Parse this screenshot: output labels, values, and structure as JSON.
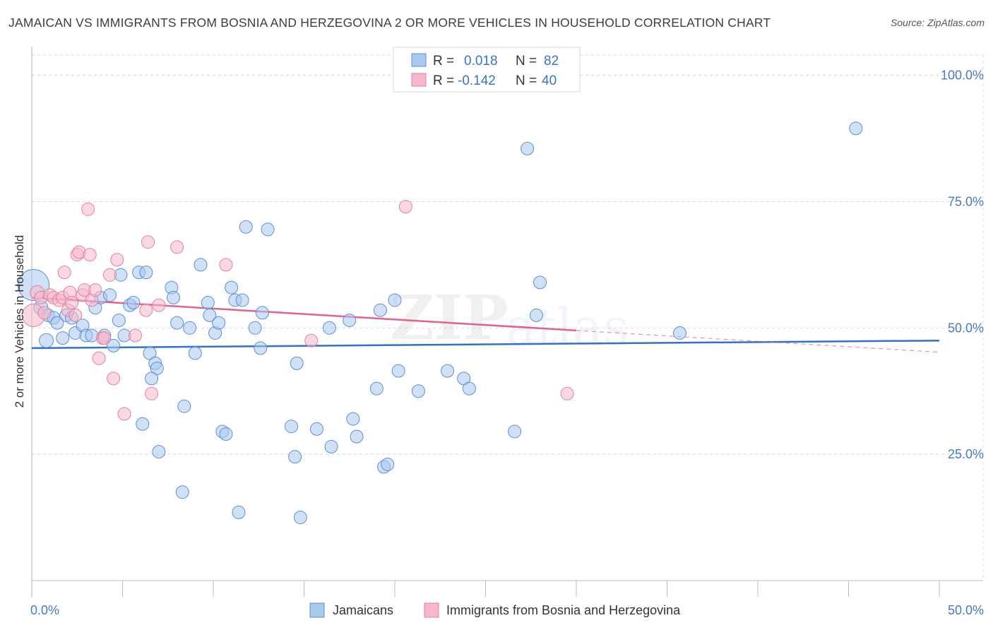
{
  "title": "JAMAICAN VS IMMIGRANTS FROM BOSNIA AND HERZEGOVINA 2 OR MORE VEHICLES IN HOUSEHOLD CORRELATION CHART",
  "source": "Source: ZipAtlas.com",
  "watermark": {
    "zip": "ZIP",
    "atlas": "atlas"
  },
  "colors": {
    "blue_fill": "#a9c8ee",
    "blue_stroke": "#5b8fd6",
    "blue_line": "#2f72c8",
    "pink_fill": "#f5b8cb",
    "pink_stroke": "#e37fa0",
    "pink_line": "#e0628e",
    "grid": "#d8d8d8",
    "tick_text": "#4a78c8"
  },
  "legend": {
    "rows": [
      {
        "r_label": "R = ",
        "r_value": "0.018",
        "n_label": "N = ",
        "n_value": "82"
      },
      {
        "r_label": "R = ",
        "r_value": "-0.142",
        "n_label": "N = ",
        "n_value": "40"
      }
    ]
  },
  "chart_data": {
    "type": "scatter",
    "title": "JAMAICAN VS IMMIGRANTS FROM BOSNIA AND HERZEGOVINA 2 OR MORE VEHICLES IN HOUSEHOLD CORRELATION CHART",
    "xlabel": "",
    "ylabel": "2 or more Vehicles in Household",
    "xlim": [
      0,
      50
    ],
    "ylim": [
      0,
      104
    ],
    "x_tick_labels": [
      "0.0%",
      "50.0%"
    ],
    "y_ticks": [
      25,
      50,
      75,
      100
    ],
    "y_tick_labels": [
      "25.0%",
      "50.0%",
      "75.0%",
      "100.0%"
    ],
    "grid": true,
    "legend_position": "bottom",
    "series": [
      {
        "name": "Jamaicans",
        "color": "#a9c8ee",
        "trend": {
          "x": [
            0,
            50
          ],
          "y": [
            46.0,
            47.5
          ]
        },
        "points": [
          [
            0.1,
            58.5,
            22
          ],
          [
            0.5,
            54.0,
            10
          ],
          [
            0.8,
            47.5,
            10
          ],
          [
            0.9,
            52.5,
            9
          ],
          [
            1.2,
            52.0,
            9
          ],
          [
            1.4,
            51.0,
            9
          ],
          [
            1.7,
            48.0,
            9
          ],
          [
            1.9,
            52.5,
            9
          ],
          [
            2.2,
            52.0,
            9
          ],
          [
            2.4,
            49.0,
            9
          ],
          [
            2.8,
            50.5,
            9
          ],
          [
            3.0,
            48.5,
            9
          ],
          [
            3.3,
            48.5,
            9
          ],
          [
            3.5,
            54.0,
            9
          ],
          [
            3.8,
            56.0,
            9
          ],
          [
            4.0,
            48.5,
            9
          ],
          [
            4.3,
            56.5,
            9
          ],
          [
            4.5,
            46.5,
            9
          ],
          [
            4.8,
            51.5,
            9
          ],
          [
            4.9,
            60.5,
            9
          ],
          [
            5.1,
            48.5,
            9
          ],
          [
            5.4,
            54.5,
            9
          ],
          [
            5.6,
            55.0,
            9
          ],
          [
            5.9,
            61.0,
            9
          ],
          [
            6.3,
            61.0,
            9
          ],
          [
            6.5,
            45.0,
            9
          ],
          [
            6.1,
            31.0,
            9
          ],
          [
            6.8,
            43.0,
            9
          ],
          [
            6.9,
            42.0,
            9
          ],
          [
            6.6,
            40.0,
            9
          ],
          [
            7.0,
            25.5,
            9
          ],
          [
            7.7,
            58.0,
            9
          ],
          [
            7.8,
            56.0,
            9
          ],
          [
            8.0,
            51.0,
            9
          ],
          [
            8.3,
            17.5,
            9
          ],
          [
            8.4,
            34.5,
            9
          ],
          [
            8.7,
            50.0,
            9
          ],
          [
            9.0,
            45.0,
            9
          ],
          [
            9.3,
            62.5,
            9
          ],
          [
            9.7,
            55.0,
            9
          ],
          [
            9.8,
            52.5,
            9
          ],
          [
            10.1,
            49.0,
            9
          ],
          [
            10.3,
            51.0,
            9
          ],
          [
            10.5,
            29.5,
            9
          ],
          [
            10.7,
            29.0,
            9
          ],
          [
            11.0,
            58.0,
            9
          ],
          [
            11.2,
            55.5,
            9
          ],
          [
            11.4,
            13.5,
            9
          ],
          [
            11.6,
            55.5,
            9
          ],
          [
            11.8,
            70.0,
            9
          ],
          [
            12.3,
            50.0,
            9
          ],
          [
            12.6,
            46.0,
            9
          ],
          [
            12.7,
            53.0,
            9
          ],
          [
            13.0,
            69.5,
            9
          ],
          [
            14.3,
            30.5,
            9
          ],
          [
            14.5,
            24.5,
            9
          ],
          [
            14.6,
            43.0,
            9
          ],
          [
            14.8,
            12.5,
            9
          ],
          [
            15.7,
            30.0,
            9
          ],
          [
            16.4,
            50.0,
            9
          ],
          [
            16.5,
            26.5,
            9
          ],
          [
            17.5,
            51.5,
            9
          ],
          [
            17.7,
            32.0,
            9
          ],
          [
            17.9,
            28.5,
            9
          ],
          [
            19.0,
            38.0,
            9
          ],
          [
            19.2,
            53.5,
            9
          ],
          [
            19.4,
            22.5,
            9
          ],
          [
            19.6,
            23.0,
            9
          ],
          [
            20.0,
            55.5,
            9
          ],
          [
            20.2,
            41.5,
            9
          ],
          [
            21.3,
            37.5,
            9
          ],
          [
            22.9,
            41.5,
            9
          ],
          [
            23.8,
            40.0,
            9
          ],
          [
            24.1,
            38.0,
            9
          ],
          [
            26.6,
            29.5,
            9
          ],
          [
            27.3,
            85.5,
            9
          ],
          [
            27.8,
            52.5,
            9
          ],
          [
            28.0,
            59.0,
            9
          ],
          [
            35.7,
            49.0,
            9
          ],
          [
            45.4,
            89.5,
            9
          ]
        ]
      },
      {
        "name": "Immigrants from Bosnia and Herzegovina",
        "color": "#f5b8cb",
        "trend": {
          "x": [
            0,
            30
          ],
          "y": [
            56.0,
            49.5
          ],
          "dashed_extension": {
            "x": [
              30,
              50
            ],
            "y": [
              49.5,
              45.2
            ]
          }
        },
        "points": [
          [
            0.1,
            52.5,
            16
          ],
          [
            0.3,
            57.0,
            10
          ],
          [
            0.5,
            56.0,
            9
          ],
          [
            0.7,
            53.0,
            9
          ],
          [
            1.0,
            56.5,
            9
          ],
          [
            1.2,
            56.0,
            9
          ],
          [
            1.5,
            55.5,
            9
          ],
          [
            1.7,
            56.0,
            9
          ],
          [
            1.8,
            61.0,
            9
          ],
          [
            2.0,
            53.5,
            9
          ],
          [
            2.1,
            57.0,
            9
          ],
          [
            2.2,
            55.0,
            9
          ],
          [
            2.4,
            52.5,
            9
          ],
          [
            2.5,
            64.5,
            9
          ],
          [
            2.6,
            65.0,
            9
          ],
          [
            2.8,
            56.5,
            9
          ],
          [
            2.9,
            57.5,
            9
          ],
          [
            3.1,
            73.5,
            9
          ],
          [
            3.2,
            64.5,
            9
          ],
          [
            3.3,
            55.5,
            9
          ],
          [
            3.5,
            57.5,
            9
          ],
          [
            3.7,
            44.0,
            9
          ],
          [
            3.9,
            48.0,
            9
          ],
          [
            4.0,
            48.0,
            9
          ],
          [
            4.3,
            60.5,
            9
          ],
          [
            4.5,
            40.0,
            9
          ],
          [
            4.7,
            63.5,
            9
          ],
          [
            5.1,
            33.0,
            9
          ],
          [
            5.7,
            48.5,
            9
          ],
          [
            6.3,
            53.5,
            9
          ],
          [
            6.4,
            67.0,
            9
          ],
          [
            6.6,
            37.0,
            9
          ],
          [
            7.0,
            54.5,
            9
          ],
          [
            8.0,
            66.0,
            9
          ],
          [
            10.7,
            62.5,
            9
          ],
          [
            15.4,
            47.5,
            9
          ],
          [
            20.6,
            74.0,
            9
          ],
          [
            29.5,
            37.0,
            9
          ]
        ]
      }
    ]
  }
}
